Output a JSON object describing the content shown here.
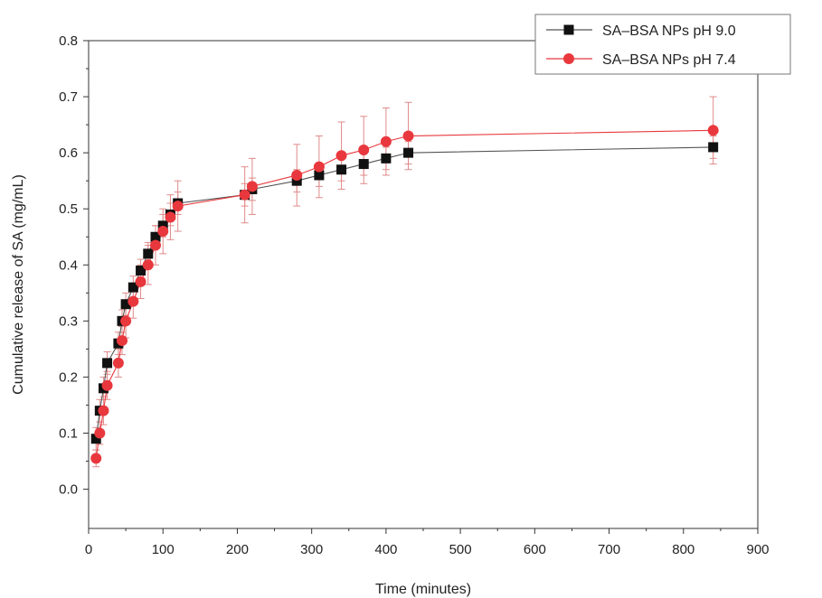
{
  "chart_data": {
    "type": "scatter",
    "title": "",
    "xlabel": "Time (minutes)",
    "ylabel": "Cumulative release of SA (mg/mL)",
    "xlim": [
      0,
      900
    ],
    "ylim": [
      -0.07,
      0.8
    ],
    "x_ticks": [
      0,
      100,
      200,
      300,
      400,
      500,
      600,
      700,
      800,
      900
    ],
    "y_ticks": [
      0.0,
      0.1,
      0.2,
      0.3,
      0.4,
      0.5,
      0.6,
      0.7,
      0.8
    ],
    "x_tick_labels": [
      "0",
      "100",
      "200",
      "300",
      "400",
      "500",
      "600",
      "700",
      "800",
      "900"
    ],
    "y_tick_labels": [
      "0.0",
      "0.1",
      "0.2",
      "0.3",
      "0.4",
      "0.5",
      "0.6",
      "0.7",
      "0.8"
    ],
    "grid": false,
    "legend_position": "top-right",
    "error_bar_color": "#e08a8a",
    "series": [
      {
        "name": "SA–BSA NPs pH 9.0",
        "marker": "square",
        "color": "#111111",
        "line_color": "#555555",
        "x": [
          10,
          15,
          20,
          25,
          40,
          45,
          50,
          60,
          70,
          80,
          90,
          100,
          110,
          120,
          210,
          220,
          280,
          310,
          340,
          370,
          400,
          430,
          840
        ],
        "y": [
          0.09,
          0.14,
          0.18,
          0.225,
          0.26,
          0.3,
          0.33,
          0.36,
          0.39,
          0.42,
          0.45,
          0.47,
          0.49,
          0.51,
          0.525,
          0.535,
          0.55,
          0.56,
          0.57,
          0.58,
          0.59,
          0.6,
          0.61
        ],
        "err": [
          0.02,
          0.02,
          0.02,
          0.02,
          0.02,
          0.02,
          0.02,
          0.02,
          0.02,
          0.02,
          0.02,
          0.02,
          0.02,
          0.02,
          0.02,
          0.02,
          0.02,
          0.02,
          0.02,
          0.02,
          0.02,
          0.02,
          0.02
        ]
      },
      {
        "name": "SA–BSA NPs pH 7.4",
        "marker": "circle",
        "color": "#e8383d",
        "line_color": "#e8383d",
        "x": [
          10,
          15,
          20,
          25,
          40,
          45,
          50,
          60,
          70,
          80,
          90,
          100,
          110,
          120,
          210,
          220,
          280,
          310,
          340,
          370,
          400,
          430,
          840
        ],
        "y": [
          0.055,
          0.1,
          0.14,
          0.185,
          0.225,
          0.265,
          0.3,
          0.335,
          0.37,
          0.4,
          0.435,
          0.46,
          0.485,
          0.505,
          0.525,
          0.54,
          0.56,
          0.575,
          0.595,
          0.605,
          0.62,
          0.63,
          0.64
        ],
        "err": [
          0.015,
          0.02,
          0.025,
          0.025,
          0.025,
          0.025,
          0.03,
          0.03,
          0.03,
          0.035,
          0.035,
          0.04,
          0.04,
          0.045,
          0.05,
          0.05,
          0.055,
          0.055,
          0.06,
          0.06,
          0.06,
          0.06,
          0.06
        ]
      }
    ]
  }
}
